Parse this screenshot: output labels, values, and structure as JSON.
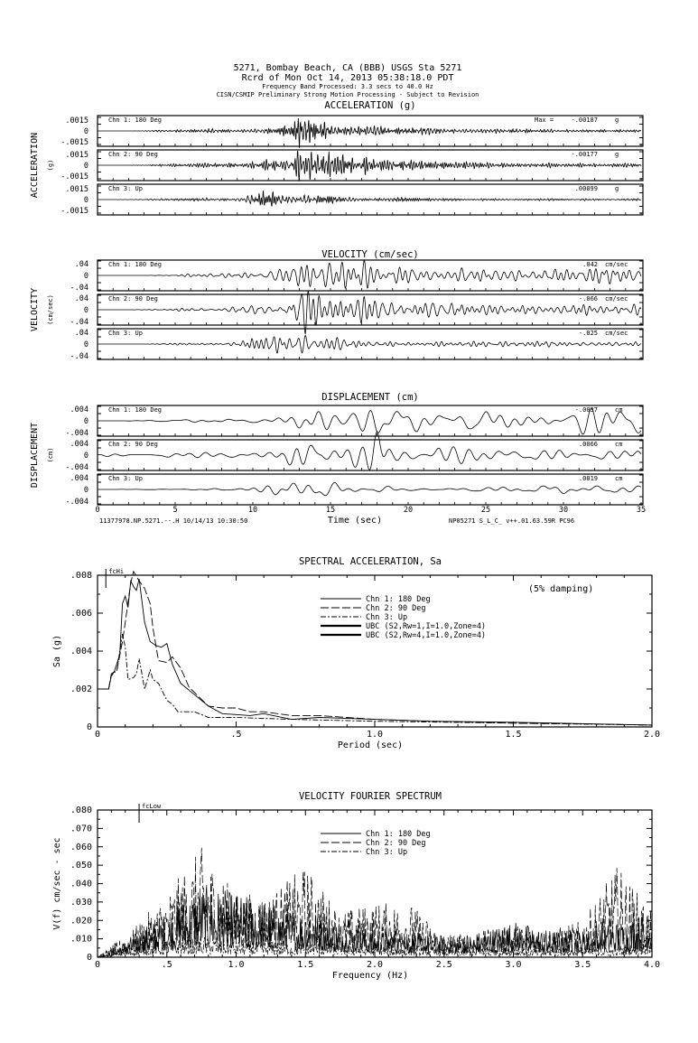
{
  "header": {
    "line1": "5271, Bombay Beach, CA (BBB)    USGS Sta 5271",
    "line2": "Rcrd of Mon Oct 14, 2013 05:38:18.0 PDT",
    "line3": "Frequency Band Processed: 3.3 secs to 40.0 Hz",
    "line4": "CISN/CSMIP Preliminary Strong Motion Processing - Subject to Revision"
  },
  "footer": {
    "left": "11377978.NP.5271.--.H 10/14/13 10:30:50",
    "right": "NP05271  S_L_C_  v++.01.63.59R PC96"
  },
  "chart_data": [
    {
      "type": "line",
      "title": "ACCELERATION (g)",
      "ylabel": "ACCELERATION",
      "ylabel_unit": "(g)",
      "xlabel": "Time (sec)",
      "xlim": [
        0,
        35
      ],
      "x_ticks": [
        "0",
        "5",
        "10",
        "15",
        "20",
        "25",
        "30",
        "35"
      ],
      "y_ticks": [
        ".0015",
        "0",
        "-.0015"
      ],
      "tick_value": 0.0015,
      "max_label": "Max =",
      "unit": "g",
      "band": "high",
      "series": [
        {
          "name": "Chn 1: 180 Deg",
          "peak_label": "-.00187",
          "peak": -0.00187,
          "envelope_per_sec": [
            0,
            0,
            0,
            0.02,
            0.06,
            0.08,
            0.1,
            0.12,
            0.14,
            0.12,
            0.15,
            0.25,
            0.35,
            0.9,
            1.0,
            0.6,
            0.5,
            0.45,
            0.35,
            0.3,
            0.25,
            0.22,
            0.2,
            0.18,
            0.16,
            0.15,
            0.13,
            0.13,
            0.12,
            0.12,
            0.11,
            0.11,
            0.1,
            0.1,
            0.1,
            0.1
          ]
        },
        {
          "name": "Chn 2: 90 Deg",
          "peak_label": "-.00177",
          "peak": -0.00177,
          "envelope_per_sec": [
            0,
            0,
            0,
            0.02,
            0.05,
            0.07,
            0.1,
            0.13,
            0.14,
            0.13,
            0.16,
            0.28,
            0.4,
            0.95,
            1.0,
            0.55,
            0.45,
            0.5,
            0.4,
            0.35,
            0.28,
            0.22,
            0.2,
            0.2,
            0.18,
            0.15,
            0.14,
            0.13,
            0.12,
            0.12,
            0.11,
            0.11,
            0.1,
            0.1,
            0.1,
            0.1
          ]
        },
        {
          "name": "Chn 3: Up",
          "peak_label": ".00099",
          "peak": 0.00099,
          "envelope_per_sec": [
            0,
            0,
            0.03,
            0.05,
            0.15,
            0.12,
            0.14,
            0.18,
            0.2,
            0.2,
            0.9,
            1.0,
            0.75,
            0.7,
            0.6,
            0.5,
            0.4,
            0.35,
            0.3,
            0.3,
            0.25,
            0.22,
            0.2,
            0.18,
            0.17,
            0.16,
            0.15,
            0.15,
            0.14,
            0.14,
            0.13,
            0.13,
            0.12,
            0.12,
            0.12,
            0.12
          ]
        }
      ]
    },
    {
      "type": "line",
      "title": "VELOCITY (cm/sec)",
      "ylabel": "VELOCITY",
      "ylabel_unit": "(cm/sec)",
      "xlim": [
        0,
        35
      ],
      "y_ticks": [
        ".04",
        "0",
        "-.04"
      ],
      "tick_value": 0.04,
      "unit": "cm/sec",
      "band": "mid",
      "series": [
        {
          "name": "Chn 1: 180 Deg",
          "peak_label": ".042",
          "peak": 0.042,
          "envelope_per_sec": [
            0,
            0,
            0,
            0,
            0.03,
            0.06,
            0.1,
            0.12,
            0.12,
            0.12,
            0.15,
            0.3,
            0.5,
            1.0,
            0.95,
            0.85,
            0.8,
            0.75,
            0.6,
            0.5,
            0.45,
            0.4,
            0.4,
            0.38,
            0.35,
            0.35,
            0.35,
            0.33,
            0.33,
            0.3,
            0.35,
            0.35,
            0.38,
            0.4,
            0.4,
            0.4
          ]
        },
        {
          "name": "Chn 2: 90 Deg",
          "peak_label": "-.066",
          "peak": -0.066,
          "envelope_per_sec": [
            0,
            0,
            0,
            0.02,
            0.04,
            0.05,
            0.08,
            0.1,
            0.12,
            0.12,
            0.15,
            0.2,
            0.35,
            1.0,
            0.7,
            0.6,
            0.6,
            0.65,
            0.55,
            0.4,
            0.35,
            0.32,
            0.32,
            0.3,
            0.3,
            0.28,
            0.25,
            0.25,
            0.22,
            0.22,
            0.25,
            0.25,
            0.25,
            0.25,
            0.25,
            0.25
          ]
        },
        {
          "name": "Chn 3: Up",
          "peak_label": "-.025",
          "peak": -0.025,
          "envelope_per_sec": [
            0,
            0,
            0,
            0,
            0.05,
            0.08,
            0.1,
            0.1,
            0.12,
            0.12,
            0.7,
            0.8,
            0.9,
            1.0,
            0.85,
            0.8,
            0.6,
            0.5,
            0.4,
            0.35,
            0.3,
            0.3,
            0.3,
            0.3,
            0.28,
            0.28,
            0.26,
            0.26,
            0.25,
            0.25,
            0.25,
            0.25,
            0.25,
            0.25,
            0.25,
            0.25
          ]
        }
      ]
    },
    {
      "type": "line",
      "title": "DISPLACEMENT (cm)",
      "ylabel": "DISPLACEMENT",
      "ylabel_unit": "(cm)",
      "xlim": [
        0,
        35
      ],
      "y_ticks": [
        ".004",
        "0",
        "-.004"
      ],
      "tick_value": 0.004,
      "unit": "cm",
      "band": "low",
      "series": [
        {
          "name": "Chn 1: 180 Deg",
          "peak_label": "-.0037",
          "peak": -0.0037,
          "envelope_per_sec": [
            0,
            0,
            0.02,
            0.03,
            0.04,
            0.05,
            0.06,
            0.08,
            0.08,
            0.08,
            0.1,
            0.12,
            0.3,
            0.5,
            0.55,
            0.5,
            0.5,
            0.6,
            1.0,
            0.6,
            0.45,
            0.45,
            0.45,
            0.45,
            0.4,
            0.5,
            0.45,
            0.45,
            0.45,
            0.5,
            0.5,
            0.55,
            0.6,
            0.7,
            0.6,
            0.5
          ]
        },
        {
          "name": "Chn 2: 90 Deg",
          "peak_label": ".0066",
          "peak": 0.0066,
          "envelope_per_sec": [
            0.03,
            0.05,
            0.06,
            0.08,
            0.1,
            0.1,
            0.1,
            0.12,
            0.12,
            0.12,
            0.1,
            0.15,
            0.3,
            0.85,
            0.5,
            0.4,
            0.35,
            0.5,
            1.0,
            0.35,
            0.3,
            0.3,
            0.55,
            0.4,
            0.3,
            0.3,
            0.3,
            0.3,
            0.3,
            0.35,
            0.35,
            0.3,
            0.3,
            0.3,
            0.3,
            0.3
          ]
        },
        {
          "name": "Chn 3: Up",
          "peak_label": ".0019",
          "peak": 0.0019,
          "envelope_per_sec": [
            0,
            0,
            0.02,
            0.03,
            0.05,
            0.06,
            0.07,
            0.08,
            0.1,
            0.1,
            0.3,
            0.6,
            0.9,
            0.8,
            1.0,
            0.6,
            0.5,
            0.45,
            0.4,
            0.4,
            0.35,
            0.3,
            0.3,
            0.3,
            0.3,
            0.3,
            0.3,
            0.3,
            0.3,
            0.35,
            0.35,
            0.3,
            0.3,
            0.3,
            0.35,
            0.35
          ]
        }
      ]
    },
    {
      "type": "line",
      "title": "SPECTRAL ACCELERATION, Sa",
      "xlabel": "Period (sec)",
      "ylabel": "Sa (g)",
      "xlim": [
        0,
        2.0
      ],
      "ylim": [
        0,
        0.008
      ],
      "x_ticks": [
        "0",
        ".5",
        "1.0",
        "1.5",
        "2.0"
      ],
      "y_ticks": [
        "0",
        ".002",
        ".004",
        ".006",
        ".008"
      ],
      "annotation": "(5% damping)",
      "marker_label": "fcHi",
      "marker_x": 0.03,
      "legend": "top-right",
      "series": [
        {
          "name": "Chn 1: 180 Deg",
          "style": "solid",
          "x": [
            0.04,
            0.05,
            0.06,
            0.08,
            0.09,
            0.1,
            0.11,
            0.12,
            0.13,
            0.14,
            0.15,
            0.17,
            0.19,
            0.21,
            0.23,
            0.25,
            0.27,
            0.3,
            0.35,
            0.4,
            0.45,
            0.55,
            0.6,
            0.7,
            0.8,
            1.0,
            1.2,
            1.5,
            2.0
          ],
          "y": [
            0.002,
            0.0027,
            0.0029,
            0.0038,
            0.0065,
            0.0069,
            0.0063,
            0.0077,
            0.0074,
            0.0072,
            0.0078,
            0.0055,
            0.0045,
            0.0043,
            0.0042,
            0.0044,
            0.0033,
            0.0023,
            0.0017,
            0.0011,
            0.0007,
            0.0006,
            0.0007,
            0.0004,
            0.0005,
            0.0004,
            0.0003,
            0.00025,
            0.0001
          ]
        },
        {
          "name": "Chn 2: 90 Deg",
          "style": "dashed",
          "x": [
            0.04,
            0.05,
            0.07,
            0.09,
            0.1,
            0.12,
            0.13,
            0.15,
            0.17,
            0.19,
            0.2,
            0.22,
            0.25,
            0.27,
            0.3,
            0.33,
            0.4,
            0.45,
            0.5,
            0.55,
            0.6,
            0.7,
            0.8,
            0.9,
            1.0,
            1.2,
            1.5,
            1.8,
            2.0
          ],
          "y": [
            0.002,
            0.0028,
            0.003,
            0.0045,
            0.0055,
            0.0076,
            0.0082,
            0.0077,
            0.0073,
            0.0065,
            0.0052,
            0.0035,
            0.0034,
            0.0037,
            0.0031,
            0.0021,
            0.0011,
            0.001,
            0.001,
            0.0008,
            0.0008,
            0.0006,
            0.0006,
            0.0005,
            0.0004,
            0.0003,
            0.0002,
            0.00015,
            0.0001
          ]
        },
        {
          "name": "Chn 3: Up",
          "style": "dashdot",
          "x": [
            0.04,
            0.05,
            0.07,
            0.09,
            0.1,
            0.11,
            0.13,
            0.14,
            0.15,
            0.17,
            0.19,
            0.2,
            0.22,
            0.25,
            0.27,
            0.29,
            0.35,
            0.4,
            0.5,
            0.7,
            1.0,
            1.5,
            2.0
          ],
          "y": [
            0.002,
            0.0027,
            0.003,
            0.0049,
            0.0042,
            0.0025,
            0.0026,
            0.0028,
            0.0036,
            0.002,
            0.003,
            0.0025,
            0.0023,
            0.0014,
            0.0012,
            0.0008,
            0.0008,
            0.0005,
            0.0005,
            0.0004,
            0.0003,
            0.0002,
            0.0001
          ]
        },
        {
          "name": "UBC (S2,Rw=1,I=1.0,Zone=4)",
          "style": "thick"
        },
        {
          "name": "UBC (S2,Rw=4,I=1.0,Zone=4)",
          "style": "thick"
        }
      ]
    },
    {
      "type": "line",
      "title": "VELOCITY FOURIER SPECTRUM",
      "xlabel": "Frequency (Hz)",
      "ylabel": "V(f)   cm/sec - sec",
      "xlim": [
        0,
        4.0
      ],
      "ylim": [
        0,
        0.08
      ],
      "x_ticks": [
        "0",
        ".5",
        "1.0",
        "1.5",
        "2.0",
        "2.5",
        "3.0",
        "3.5",
        "4.0"
      ],
      "y_ticks": [
        "0",
        ".010",
        ".020",
        ".030",
        ".040",
        ".050",
        ".060",
        ".070",
        ".080"
      ],
      "marker_label": "fcLow",
      "marker_x": 0.3,
      "legend": "top-center",
      "series": [
        {
          "name": "Chn 1: 180 Deg",
          "style": "solid",
          "envelope_x": [
            0,
            0.25,
            0.5,
            0.75,
            1.0,
            1.25,
            1.5,
            1.75,
            2.0,
            2.25,
            2.5,
            2.75,
            3.0,
            3.25,
            3.5,
            3.75,
            4.0
          ],
          "envelope_y": [
            0,
            0.012,
            0.025,
            0.04,
            0.035,
            0.03,
            0.025,
            0.02,
            0.015,
            0.014,
            0.012,
            0.014,
            0.02,
            0.015,
            0.015,
            0.02,
            0.025
          ]
        },
        {
          "name": "Chn 2: 90 Deg",
          "style": "dashed",
          "envelope_x": [
            0,
            0.25,
            0.5,
            0.75,
            1.0,
            1.25,
            1.5,
            1.75,
            2.0,
            2.25,
            2.5,
            2.75,
            3.0,
            3.25,
            3.5,
            3.75,
            4.0
          ],
          "envelope_y": [
            0,
            0.015,
            0.035,
            0.06,
            0.035,
            0.035,
            0.05,
            0.025,
            0.03,
            0.03,
            0.012,
            0.014,
            0.018,
            0.015,
            0.02,
            0.05,
            0.025
          ]
        },
        {
          "name": "Chn 3: Up",
          "style": "dashdot",
          "envelope_x": [
            0,
            0.25,
            0.5,
            0.75,
            1.0,
            1.25,
            1.5,
            1.75,
            2.0,
            2.25,
            2.5,
            2.75,
            3.0,
            3.25,
            3.5,
            3.75,
            4.0
          ],
          "envelope_y": [
            0,
            0.006,
            0.01,
            0.012,
            0.01,
            0.009,
            0.009,
            0.008,
            0.007,
            0.007,
            0.005,
            0.005,
            0.006,
            0.005,
            0.006,
            0.006,
            0.012
          ]
        }
      ]
    }
  ]
}
